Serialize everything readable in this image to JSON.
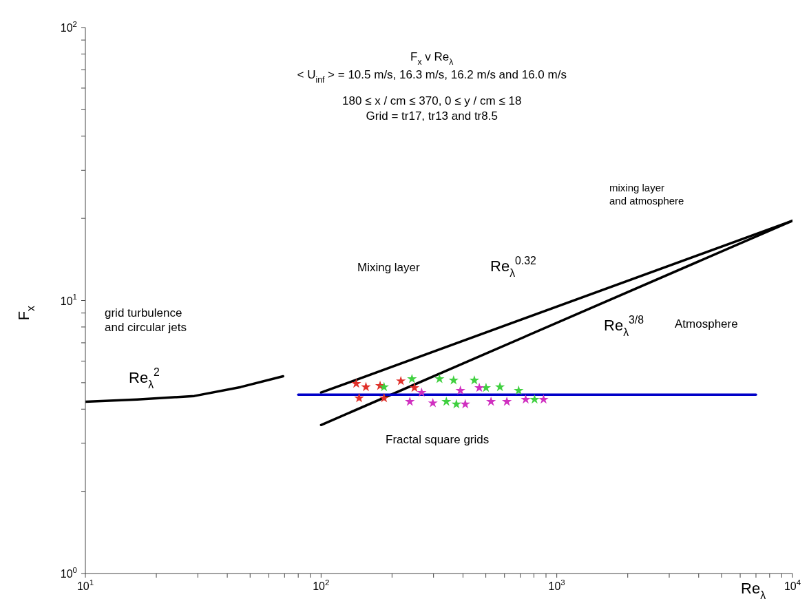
{
  "chart_data": {
    "type": "line",
    "title": "F$_{x}$  v  Re$_{λ}$",
    "subtitle": "< U$_{inf}$ > = 10.5 m/s, 16.3 m/s, 16.2 m/s and 16.0 m/s",
    "xlabel": "Re$_{λ}$",
    "ylabel": "F$_{x}$",
    "log": "xy",
    "xlim": [
      10,
      10000
    ],
    "ylim": [
      1,
      100
    ],
    "xticks": [
      {
        "value": 10,
        "label": "10$^{1}$"
      },
      {
        "value": 20,
        "label": null
      },
      {
        "value": 30,
        "label": null
      },
      {
        "value": 40,
        "label": null
      },
      {
        "value": 50,
        "label": null
      },
      {
        "value": 60,
        "label": null
      },
      {
        "value": 70,
        "label": null
      },
      {
        "value": 80,
        "label": null
      },
      {
        "value": 90,
        "label": null
      },
      {
        "value": 100,
        "label": "10$^{2}$"
      },
      {
        "value": 200,
        "label": null
      },
      {
        "value": 300,
        "label": null
      },
      {
        "value": 400,
        "label": null
      },
      {
        "value": 500,
        "label": null
      },
      {
        "value": 600,
        "label": null
      },
      {
        "value": 700,
        "label": null
      },
      {
        "value": 800,
        "label": null
      },
      {
        "value": 900,
        "label": null
      },
      {
        "value": 1000,
        "label": "10$^{3}$"
      },
      {
        "value": 2000,
        "label": null
      },
      {
        "value": 3000,
        "label": null
      },
      {
        "value": 4000,
        "label": null
      },
      {
        "value": 5000,
        "label": null
      },
      {
        "value": 6000,
        "label": null
      },
      {
        "value": 7000,
        "label": null
      },
      {
        "value": 8000,
        "label": null
      },
      {
        "value": 9000,
        "label": null
      },
      {
        "value": 10000,
        "label": "10$^{4}$"
      }
    ],
    "yticks": [
      {
        "value": 1,
        "label": "10$^{0}$"
      },
      {
        "value": 2,
        "label": null
      },
      {
        "value": 3,
        "label": null
      },
      {
        "value": 4,
        "label": null
      },
      {
        "value": 5,
        "label": null
      },
      {
        "value": 6,
        "label": null
      },
      {
        "value": 7,
        "label": null
      },
      {
        "value": 8,
        "label": null
      },
      {
        "value": 9,
        "label": null
      },
      {
        "value": 10,
        "label": "10$^{1}$"
      },
      {
        "value": 20,
        "label": null
      },
      {
        "value": 30,
        "label": null
      },
      {
        "value": 40,
        "label": null
      },
      {
        "value": 50,
        "label": null
      },
      {
        "value": 60,
        "label": null
      },
      {
        "value": 70,
        "label": null
      },
      {
        "value": 80,
        "label": null
      },
      {
        "value": 90,
        "label": null
      },
      {
        "value": 100,
        "label": "10$^{2}$"
      }
    ],
    "series": [
      {
        "type": "line",
        "color": "#000000",
        "marker": "none",
        "x": [
          10,
          16.6,
          29,
          45.6,
          69
        ],
        "values": [
          4.26,
          4.34,
          4.47,
          4.82,
          5.28
        ]
      },
      {
        "type": "line",
        "color": "#000000",
        "marker": "none",
        "x": [
          100,
          10000
        ],
        "values": [
          4.6,
          19.6
        ]
      },
      {
        "type": "line",
        "color": "#000000",
        "marker": "none",
        "x": [
          100,
          10000
        ],
        "values": [
          3.5,
          19.6
        ]
      },
      {
        "type": "line",
        "color": "#0000c8",
        "marker": "none",
        "x": [
          80,
          7000
        ],
        "values": [
          4.52,
          4.52
        ]
      },
      {
        "type": "scatter",
        "color": "#e0302a",
        "marker": "star",
        "x": [
          141,
          155,
          178,
          218,
          249,
          145,
          185
        ],
        "values": [
          4.96,
          4.82,
          4.87,
          5.07,
          4.79,
          4.39,
          4.39
        ]
      },
      {
        "type": "scatter",
        "color": "#40d040",
        "marker": "star",
        "x": [
          185,
          243,
          318,
          365,
          447,
          340,
          574,
          689,
          805,
          501,
          375
        ],
        "values": [
          4.82,
          5.16,
          5.16,
          5.1,
          5.1,
          4.26,
          4.82,
          4.68,
          4.34,
          4.79,
          4.17
        ]
      },
      {
        "type": "scatter",
        "color": "#d030c0",
        "marker": "star",
        "x": [
          238,
          298,
          390,
          469,
          526,
          614,
          738,
          879,
          409,
          267
        ],
        "values": [
          4.26,
          4.21,
          4.68,
          4.79,
          4.26,
          4.26,
          4.34,
          4.34,
          4.17,
          4.6
        ]
      }
    ],
    "annotations": [
      "180 ≤ x / cm ≤ 370, 0 ≤ y / cm ≤ 18",
      "Grid = tr17, tr13 and tr8.5",
      "grid turbulence\nand circular jets",
      "Re$_{λ}$$^{2}$",
      "Mixing layer",
      "Re$_{λ}$$^{0.32}$",
      "Re$_{λ}$$^{3/8}$",
      "Atmosphere",
      "mixing layer\nand atmosphere",
      "Fractal square grids"
    ]
  }
}
